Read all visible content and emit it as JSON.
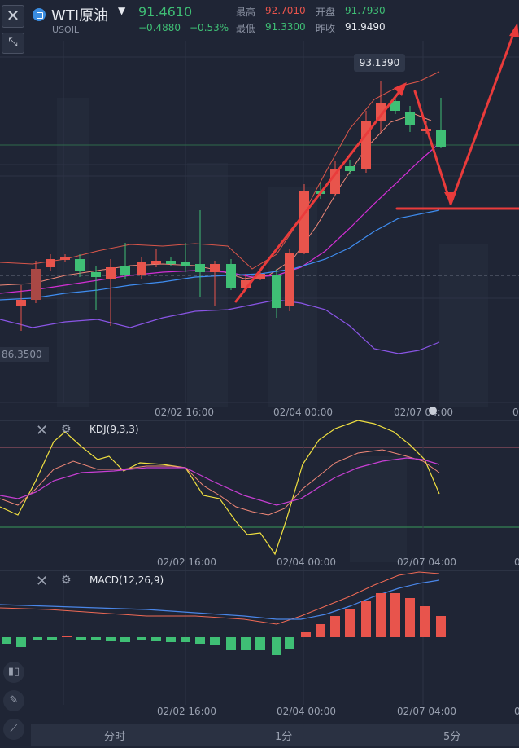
{
  "header": {
    "symbol": "WTI原油",
    "symbol_code": "USOIL",
    "price": "91.4610",
    "change": "−0.4880",
    "change_pct": "−0.53%",
    "high_label": "最高",
    "high": "92.7010",
    "open_label": "开盘",
    "open": "91.7930",
    "low_label": "最低",
    "low": "91.3300",
    "prev_label": "昨收",
    "prev_close": "91.9490"
  },
  "chart": {
    "max_price_bubble": "93.1390",
    "min_price_tag": "86.3500",
    "time_labels": [
      "02/02 16:00",
      "02/04 00:00",
      "02/07 04:00"
    ],
    "time_edge_label": "0"
  },
  "kdj": {
    "title": "KDJ(9,3,3)"
  },
  "macd": {
    "title": "MACD(12,26,9)"
  },
  "tabs": {
    "intraday": "分时",
    "one_min": "1分",
    "five_min": "5分"
  },
  "icons": {
    "close": "close-icon",
    "expand": "shrink-arrows-icon",
    "gear": "gear-icon",
    "candles": "candles-icon",
    "pen": "pen-icon",
    "line_tool": "line-tool-icon"
  },
  "colors": {
    "up": "#e8544c",
    "down": "#3fbf75",
    "bg": "#1f2535"
  }
}
